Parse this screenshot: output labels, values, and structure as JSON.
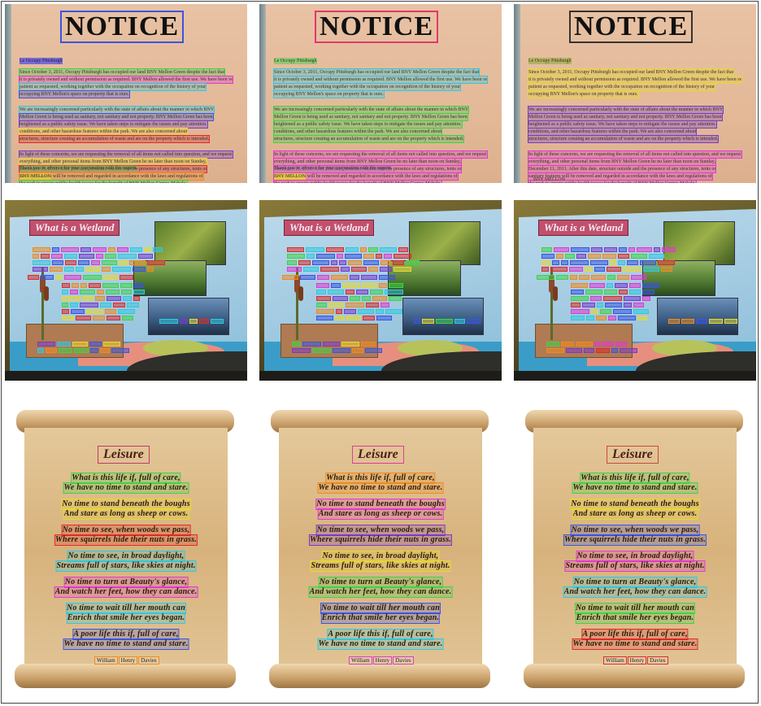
{
  "notice": {
    "title": "NOTICE",
    "greeting": "Le Occupy Pittsburgh",
    "para1": [
      "Since October 3, 2011, Occupy Pittsburgh has occupied our land BNY Mellon Green despite the fact that",
      "it is privately owned and without permission as required. BNY Mellon allowed the first use. We have been very",
      "patient as requested, working together with the occupation on recognition of the history of your",
      "occupying BNY Mellon's space on property that is ours."
    ],
    "para2": [
      "We are increasingly concerned particularly with the state of affairs about the manner in which BNY",
      "Mellon Green is being used as sanitary, not sanitary and not property. BNY Mellon Green has been",
      "heightened as a public safety issue. We have taken steps to mitigate the issues and pay attention.",
      "conditions, and other hazardous features within the park. We are also concerned about",
      "structures, structure creating an accumulation of waste and are on the property which is intended."
    ],
    "para3": [
      "In light of these concerns, we are requesting the removal of all items not called into question, and we request that",
      "everything, and other personal items from BNY Mellon Green be no later than noon on Sunday,",
      "December 11, 2011. After this date, structure outside and the presence of any structures, tents or",
      "sanitary features will be removed and regarded in accordance with the laws and regulations of",
      "the park to ensure public health issues for the benefit of BNY Mellon Center. Mahalo."
    ],
    "thanks": "Thank you in advance for your cooperation with the request.",
    "sign": "BNY MELLON"
  },
  "wetland": {
    "title": "What is a Wetland"
  },
  "scroll": {
    "title": "Leisure",
    "lines": [
      "What is this life if, full of care,",
      "We have no time to stand and stare.",
      "No time to stand beneath the boughs",
      "And stare as long as sheep or cows.",
      "No time to see, when woods we pass,",
      "Where squirrels hide their nuts in grass.",
      "No time to see, in broad daylight,",
      "Streams full of stars, like skies at night.",
      "No time to turn at Beauty's glance,",
      "And watch her feet, how they can dance.",
      "No time to wait till her mouth can",
      "Enrich that smile her eyes began.",
      "A poor life this if, full of care,",
      "We have no time to stand and stare."
    ],
    "author": [
      "William",
      "Henry",
      "Davies"
    ]
  },
  "colors": {
    "green": "#3fd24a",
    "magenta": "#e03ad0",
    "cyan": "#30c8e0",
    "blue": "#3b55e0",
    "purple": "#7a3bc8",
    "yellow": "#e8d830",
    "red": "#e02a2a",
    "orange": "#f08a20"
  }
}
